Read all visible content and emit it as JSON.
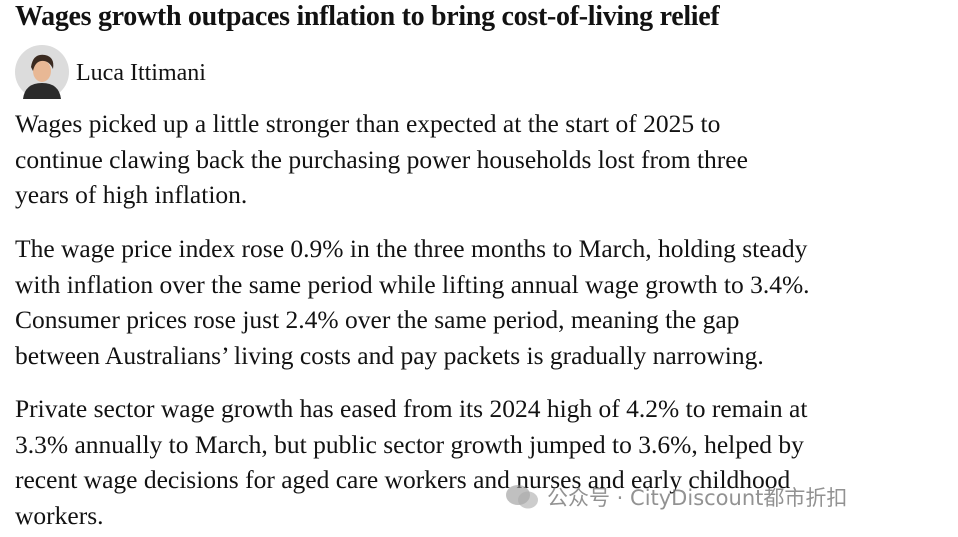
{
  "header": {
    "title": "Wages growth outpaces inflation to bring cost-of-living relief"
  },
  "byline": {
    "author": "Luca Ittimani"
  },
  "paragraphs": [
    {
      "lines": [
        "Wages picked up a little stronger than expected at the start of 2025 to",
        "continue clawing back the purchasing power households lost from three",
        "years of high inflation."
      ]
    },
    {
      "lines": [
        "The wage price index rose 0.9% in the three months to March, holding steady",
        "with inflation over the same period while lifting annual wage growth to 3.4%.",
        "Consumer prices rose just 2.4% over the same period, meaning the gap",
        "between Australians’ living costs and pay packets is gradually narrowing."
      ]
    },
    {
      "lines": [
        "Private sector wage growth has eased from its 2024 high of 4.2% to remain at",
        "3.3% annually to March, but public sector growth jumped to 3.6%, helped by",
        "recent wage decisions for aged care workers and nurses and early childhood",
        "workers."
      ]
    }
  ],
  "watermark": {
    "text": "公众号 · CityDiscount都市折扣"
  }
}
